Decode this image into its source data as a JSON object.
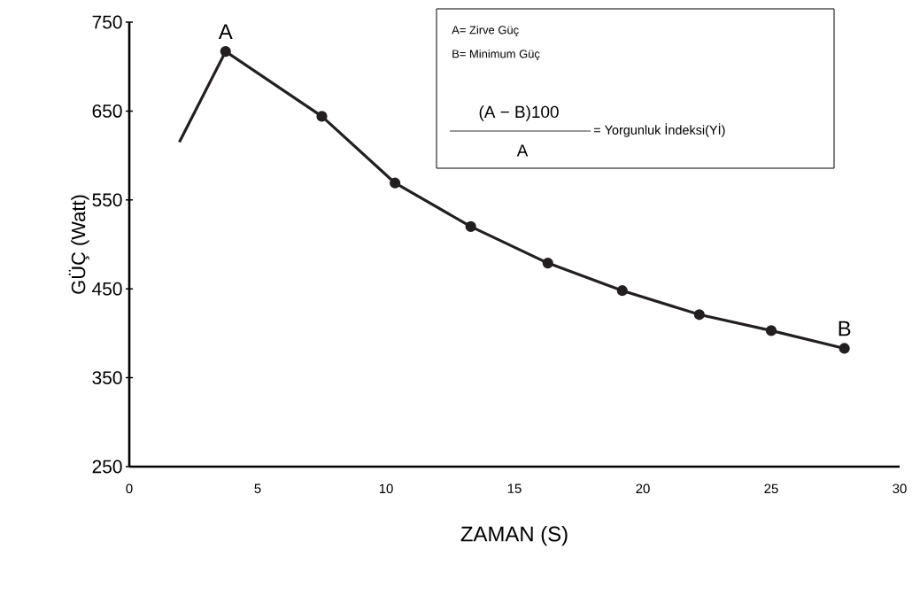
{
  "chart_data": {
    "type": "line",
    "xlabel": "ZAMAN (S)",
    "ylabel": "GÜÇ (Watt)",
    "series": [
      {
        "color": "#231f20",
        "x": [
          1.95,
          3.75
        ],
        "values": [
          615,
          717
        ]
      },
      {
        "color": "#231f20",
        "marker": "circle",
        "x": [
          3.75,
          7.5,
          10.35,
          13.3,
          16.3,
          19.2,
          22.2,
          25,
          27.85
        ],
        "values": [
          717,
          644,
          569,
          520,
          479,
          448,
          421,
          403,
          383
        ]
      }
    ],
    "xlim": [
      0,
      30
    ],
    "ylim": [
      250,
      750
    ],
    "xticks": [
      0,
      5,
      10,
      15,
      20,
      25,
      30
    ],
    "yticks": [
      250,
      350,
      450,
      550,
      650,
      750
    ],
    "grid": false,
    "line_style": "solid",
    "annotations": [
      {
        "text": "A",
        "x": 3.75,
        "y": 717
      },
      {
        "text": "B",
        "x": 27.85,
        "y": 383
      },
      "A= Zirve Güç",
      "B= Minimum Güç",
      "(A − B)100",
      "A",
      "= Yorgunluk İndeksi(Yİ)"
    ]
  }
}
